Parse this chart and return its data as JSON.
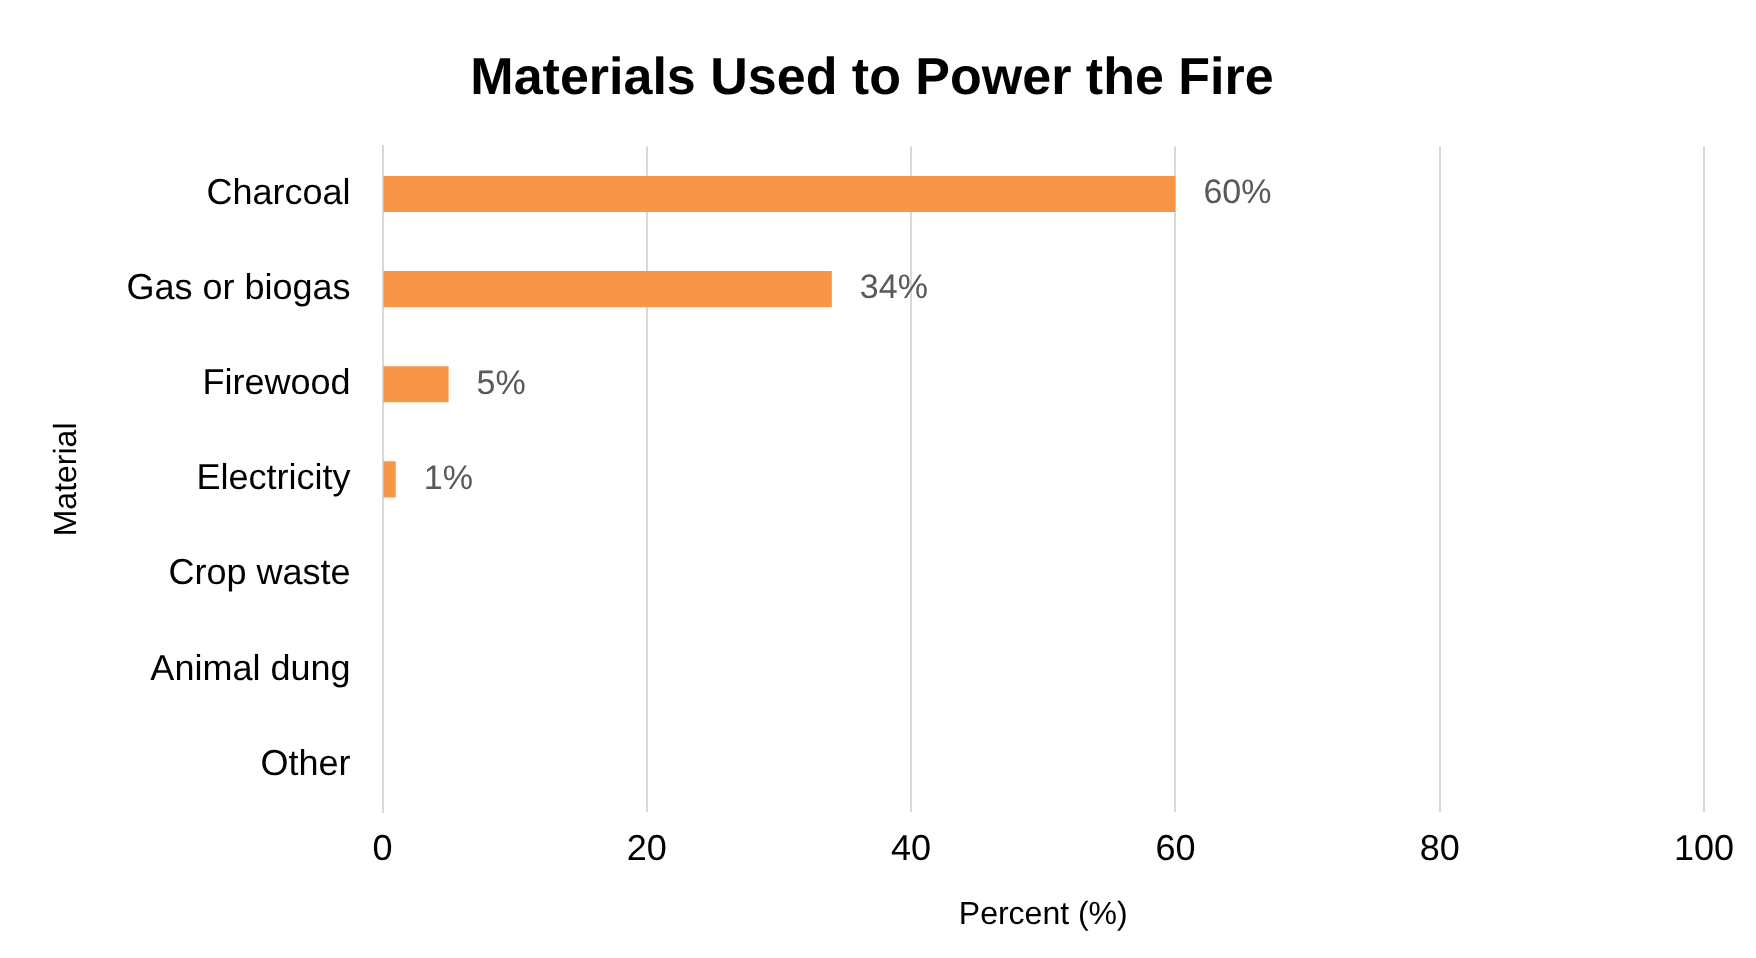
{
  "chart_data": {
    "type": "bar",
    "orientation": "horizontal",
    "title": "Materials Used to Power the Fire",
    "xlabel": "Percent (%)",
    "ylabel": "Material",
    "categories": [
      "Charcoal",
      "Gas or biogas",
      "Firewood",
      "Electricity",
      "Crop waste",
      "Animal dung",
      "Other"
    ],
    "values": [
      60,
      34,
      5,
      1,
      0,
      0,
      0
    ],
    "value_labels": [
      "60%",
      "34%",
      "5%",
      "1%",
      null,
      null,
      null
    ],
    "color": "#f79646",
    "xlim": [
      0,
      100
    ],
    "xticks": [
      0,
      20,
      40,
      60,
      80,
      100
    ],
    "grid": "x",
    "legend": false
  }
}
